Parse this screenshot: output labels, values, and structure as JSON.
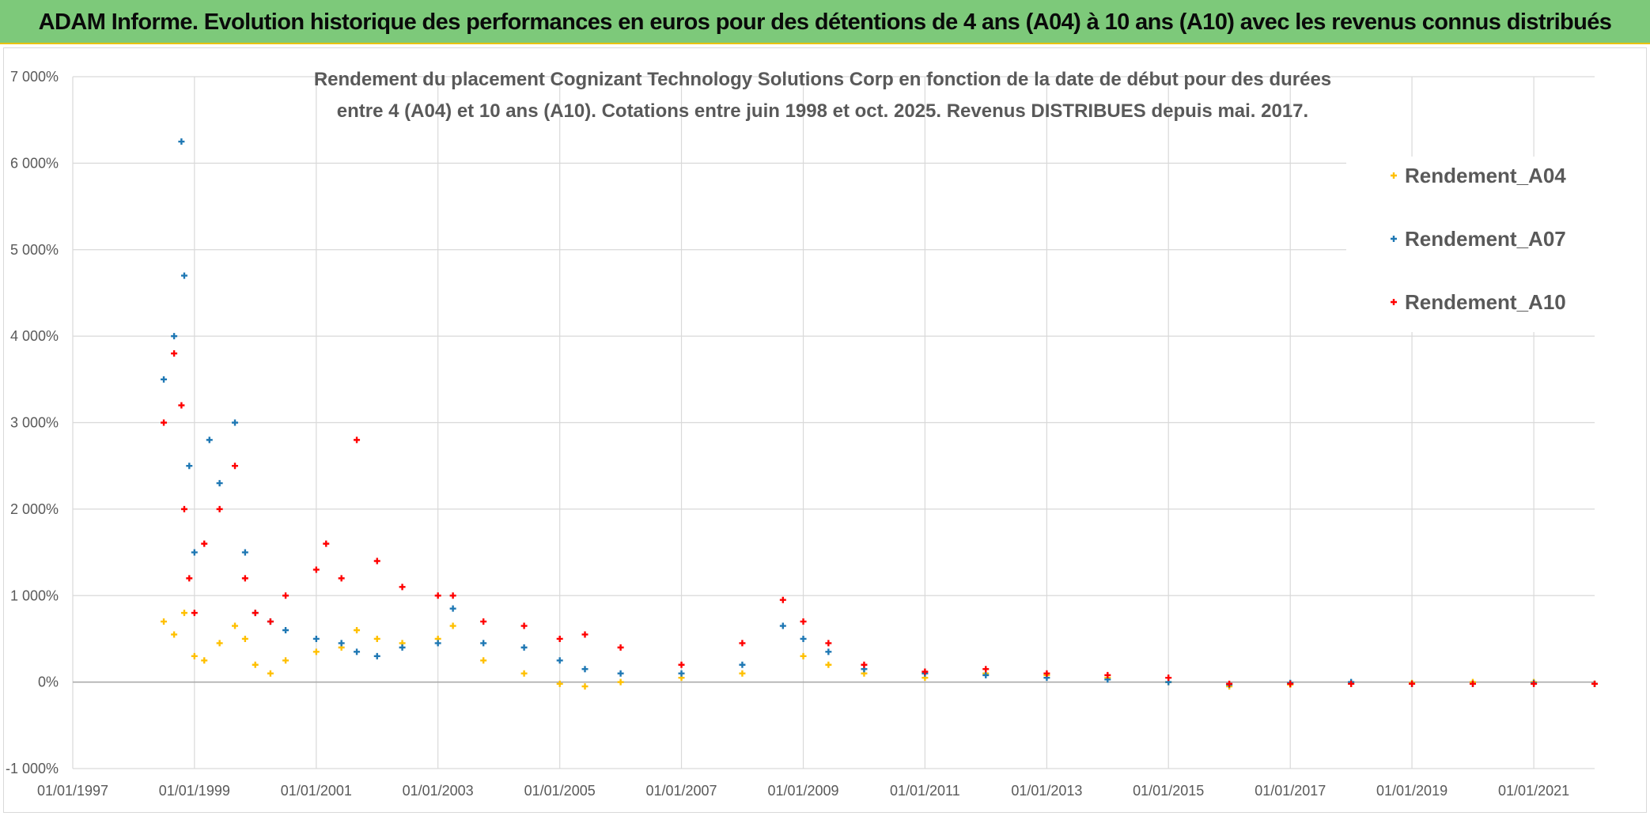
{
  "banner": {
    "title": "ADAM Informe. Evolution historique des performances en euros pour des détentions de 4 ans (A04) à 10 ans (A10) avec les revenus connus distribués",
    "background": "#7dc97a",
    "accent": "#e8c20a"
  },
  "chart_data": {
    "type": "scatter",
    "title_lines": [
      "Rendement du placement Cognizant Technology Solutions Corp en fonction de la date de début pour des durées",
      "entre 4 (A04) et 10 ans (A10). Cotations entre juin 1998 et oct. 2025. Revenus DISTRIBUES depuis mai. 2017."
    ],
    "xlabel": "",
    "ylabel": "",
    "x_axis": "date",
    "xlim": [
      "1997-01-01",
      "2022-01-01"
    ],
    "ylim": [
      -1000,
      7000
    ],
    "y_unit": "%",
    "grid": true,
    "legend_position": "top-right",
    "x_ticks": [
      "01/01/1997",
      "01/01/1999",
      "01/01/2001",
      "01/01/2003",
      "01/01/2005",
      "01/01/2007",
      "01/01/2009",
      "01/01/2011",
      "01/01/2013",
      "01/01/2015",
      "01/01/2017",
      "01/01/2019",
      "01/01/2021"
    ],
    "y_ticks": [
      {
        "value": -1000,
        "label": "-1 000%"
      },
      {
        "value": 0,
        "label": "0%"
      },
      {
        "value": 1000,
        "label": "1 000%"
      },
      {
        "value": 2000,
        "label": "2 000%"
      },
      {
        "value": 3000,
        "label": "3 000%"
      },
      {
        "value": 4000,
        "label": "4 000%"
      },
      {
        "value": 5000,
        "label": "5 000%"
      },
      {
        "value": 6000,
        "label": "6 000%"
      },
      {
        "value": 7000,
        "label": "7 000%"
      }
    ],
    "series": [
      {
        "name": "Rendement_A04",
        "color": "#ffc000",
        "x": [
          "1998-07-01",
          "1998-09-01",
          "1998-11-01",
          "1999-01-01",
          "1999-03-01",
          "1999-06-01",
          "1999-09-01",
          "1999-11-01",
          "2000-01-01",
          "2000-04-01",
          "2000-07-01",
          "2001-01-01",
          "2001-06-01",
          "2001-09-01",
          "2002-01-01",
          "2002-06-01",
          "2003-01-01",
          "2003-04-01",
          "2003-10-01",
          "2004-06-01",
          "2005-01-01",
          "2005-06-01",
          "2006-01-01",
          "2007-01-01",
          "2008-01-01",
          "2009-01-01",
          "2009-06-01",
          "2010-01-01",
          "2011-01-01",
          "2012-01-01",
          "2013-01-01",
          "2014-01-01",
          "2015-01-01",
          "2016-01-01",
          "2017-01-01",
          "2018-01-01",
          "2019-01-01",
          "2020-01-01",
          "2021-01-01",
          "2022-01-01"
        ],
        "values": [
          700,
          550,
          800,
          300,
          250,
          450,
          650,
          500,
          200,
          100,
          250,
          350,
          400,
          600,
          500,
          450,
          500,
          650,
          250,
          100,
          -20,
          -50,
          0,
          50,
          100,
          300,
          200,
          100,
          50,
          100,
          80,
          50,
          0,
          -50,
          -30,
          -20,
          -10,
          0,
          0,
          -20
        ]
      },
      {
        "name": "Rendement_A07",
        "color": "#1f78b4",
        "x": [
          "1998-07-01",
          "1998-09-01",
          "1998-10-15",
          "1998-11-01",
          "1998-12-01",
          "1999-01-01",
          "1999-04-01",
          "1999-06-01",
          "1999-09-01",
          "1999-11-01",
          "2000-01-01",
          "2000-04-01",
          "2000-07-01",
          "2001-01-01",
          "2001-06-01",
          "2001-09-01",
          "2002-01-01",
          "2002-06-01",
          "2003-01-01",
          "2003-04-01",
          "2003-10-01",
          "2004-06-01",
          "2005-01-01",
          "2005-06-01",
          "2006-01-01",
          "2007-01-01",
          "2008-01-01",
          "2008-09-01",
          "2009-01-01",
          "2009-06-01",
          "2010-01-01",
          "2011-01-01",
          "2012-01-01",
          "2013-01-01",
          "2014-01-01",
          "2015-01-01",
          "2016-01-01",
          "2017-01-01",
          "2018-01-01",
          "2019-01-01",
          "2020-01-01",
          "2021-01-01",
          "2022-01-01"
        ],
        "values": [
          3500,
          4000,
          6250,
          4700,
          2500,
          1500,
          2800,
          2300,
          3000,
          1500,
          800,
          700,
          600,
          500,
          450,
          350,
          300,
          400,
          450,
          850,
          450,
          400,
          250,
          150,
          100,
          100,
          200,
          650,
          500,
          350,
          150,
          100,
          80,
          50,
          30,
          0,
          -30,
          -10,
          0,
          -20,
          -20,
          -10,
          -20
        ]
      },
      {
        "name": "Rendement_A10",
        "color": "#ff0000",
        "x": [
          "1998-07-01",
          "1998-09-01",
          "1998-10-15",
          "1998-11-01",
          "1998-12-01",
          "1999-01-01",
          "1999-03-01",
          "1999-06-01",
          "1999-09-01",
          "1999-11-01",
          "2000-01-01",
          "2000-04-01",
          "2000-07-01",
          "2001-01-01",
          "2001-03-01",
          "2001-06-01",
          "2001-09-01",
          "2002-01-01",
          "2002-06-01",
          "2003-01-01",
          "2003-04-01",
          "2003-10-01",
          "2004-06-01",
          "2005-01-01",
          "2005-06-01",
          "2006-01-01",
          "2007-01-01",
          "2008-01-01",
          "2008-09-01",
          "2009-01-01",
          "2009-06-01",
          "2010-01-01",
          "2011-01-01",
          "2012-01-01",
          "2013-01-01",
          "2014-01-01",
          "2015-01-01",
          "2016-01-01",
          "2017-01-01",
          "2018-01-01",
          "2019-01-01",
          "2020-01-01",
          "2021-01-01",
          "2022-01-01"
        ],
        "values": [
          3000,
          3800,
          3200,
          2000,
          1200,
          800,
          1600,
          2000,
          2500,
          1200,
          800,
          700,
          1000,
          1300,
          1600,
          1200,
          2800,
          1400,
          1100,
          1000,
          1000,
          700,
          650,
          500,
          550,
          400,
          200,
          450,
          950,
          700,
          450,
          200,
          120,
          150,
          100,
          80,
          50,
          -20,
          -20,
          -20,
          -20,
          -20,
          -20,
          -20
        ]
      }
    ]
  }
}
